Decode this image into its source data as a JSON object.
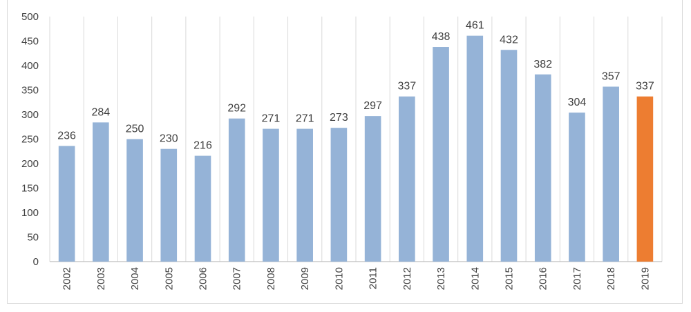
{
  "chart_data": {
    "type": "bar",
    "categories": [
      "2002",
      "2003",
      "2004",
      "2005",
      "2006",
      "2007",
      "2008",
      "2009",
      "2010",
      "2011",
      "2012",
      "2013",
      "2014",
      "2015",
      "2016",
      "2017",
      "2018",
      "2019"
    ],
    "values": [
      236,
      284,
      250,
      230,
      216,
      292,
      271,
      271,
      273,
      297,
      337,
      438,
      461,
      432,
      382,
      304,
      357,
      337
    ],
    "ylim": [
      0,
      500
    ],
    "yticks": [
      0,
      50,
      100,
      150,
      200,
      250,
      300,
      350,
      400,
      450,
      500
    ],
    "grid": "vertical",
    "legend": "none",
    "colors": {
      "bar": "#95B3D7",
      "highlight": "#ED7D31",
      "grid": "#d9d9d9",
      "axis": "#bfbfbf"
    },
    "highlight_index": 17
  }
}
